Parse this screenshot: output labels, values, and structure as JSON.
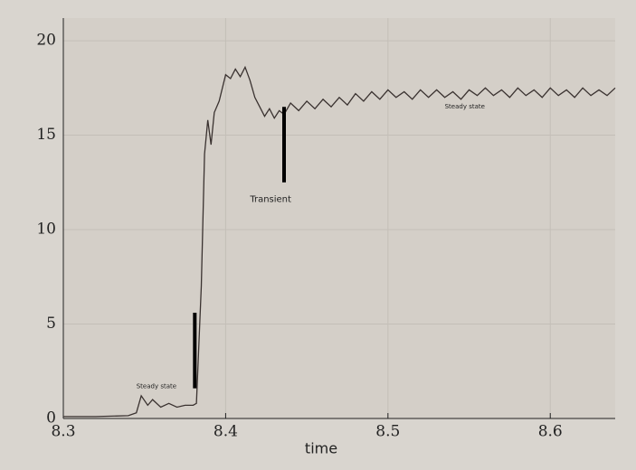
{
  "chart_data": {
    "type": "line",
    "x_label": "time",
    "x": [
      8.3,
      8.32,
      8.34,
      8.345,
      8.348,
      8.352,
      8.355,
      8.36,
      8.365,
      8.37,
      8.375,
      8.38,
      8.382,
      8.385,
      8.387,
      8.389,
      8.391,
      8.393,
      8.396,
      8.4,
      8.403,
      8.406,
      8.409,
      8.412,
      8.415,
      8.418,
      8.421,
      8.424,
      8.427,
      8.43,
      8.433,
      8.436,
      8.44,
      8.445,
      8.45,
      8.455,
      8.46,
      8.465,
      8.47,
      8.475,
      8.48,
      8.485,
      8.49,
      8.495,
      8.5,
      8.505,
      8.51,
      8.515,
      8.52,
      8.525,
      8.53,
      8.535,
      8.54,
      8.545,
      8.55,
      8.555,
      8.56,
      8.565,
      8.57,
      8.575,
      8.58,
      8.585,
      8.59,
      8.595,
      8.6,
      8.605,
      8.61,
      8.615,
      8.62,
      8.625,
      8.63,
      8.635,
      8.64
    ],
    "series": [
      {
        "color": "#3a3230",
        "values": [
          0.1,
          0.1,
          0.15,
          0.3,
          1.2,
          0.7,
          1.0,
          0.6,
          0.8,
          0.6,
          0.7,
          0.7,
          0.8,
          7,
          14,
          15.8,
          14.5,
          16.2,
          16.8,
          18.2,
          18.0,
          18.5,
          18.1,
          18.6,
          17.9,
          17.0,
          16.5,
          16.0,
          16.4,
          15.9,
          16.3,
          16.1,
          16.7,
          16.3,
          16.8,
          16.4,
          16.9,
          16.5,
          17.0,
          16.6,
          17.2,
          16.8,
          17.3,
          16.9,
          17.4,
          17.0,
          17.3,
          16.9,
          17.4,
          17.0,
          17.4,
          17.0,
          17.3,
          16.9,
          17.4,
          17.1,
          17.5,
          17.1,
          17.4,
          17.0,
          17.5,
          17.1,
          17.4,
          17.0,
          17.5,
          17.1,
          17.4,
          17.0,
          17.5,
          17.1,
          17.4,
          17.1,
          17.5
        ]
      }
    ],
    "xlim": [
      8.3,
      8.64
    ],
    "xticks": [
      8.3,
      8.4,
      8.5,
      8.6
    ],
    "ylim": [
      0,
      21.2
    ],
    "yticks": [
      0,
      5,
      10,
      15,
      20
    ],
    "grid": true,
    "annotations": [
      {
        "text": "Steady state",
        "x": 8.345,
        "y": 1.7
      },
      {
        "text": "Transient",
        "x": 8.415,
        "y": 11.6
      },
      {
        "text": "Steady state",
        "x": 8.535,
        "y": 16.5
      }
    ],
    "markers": [
      {
        "x": 8.381,
        "y": [
          1.6,
          5.6
        ]
      },
      {
        "x": 8.436,
        "y": [
          12.5,
          16.5
        ]
      }
    ]
  }
}
